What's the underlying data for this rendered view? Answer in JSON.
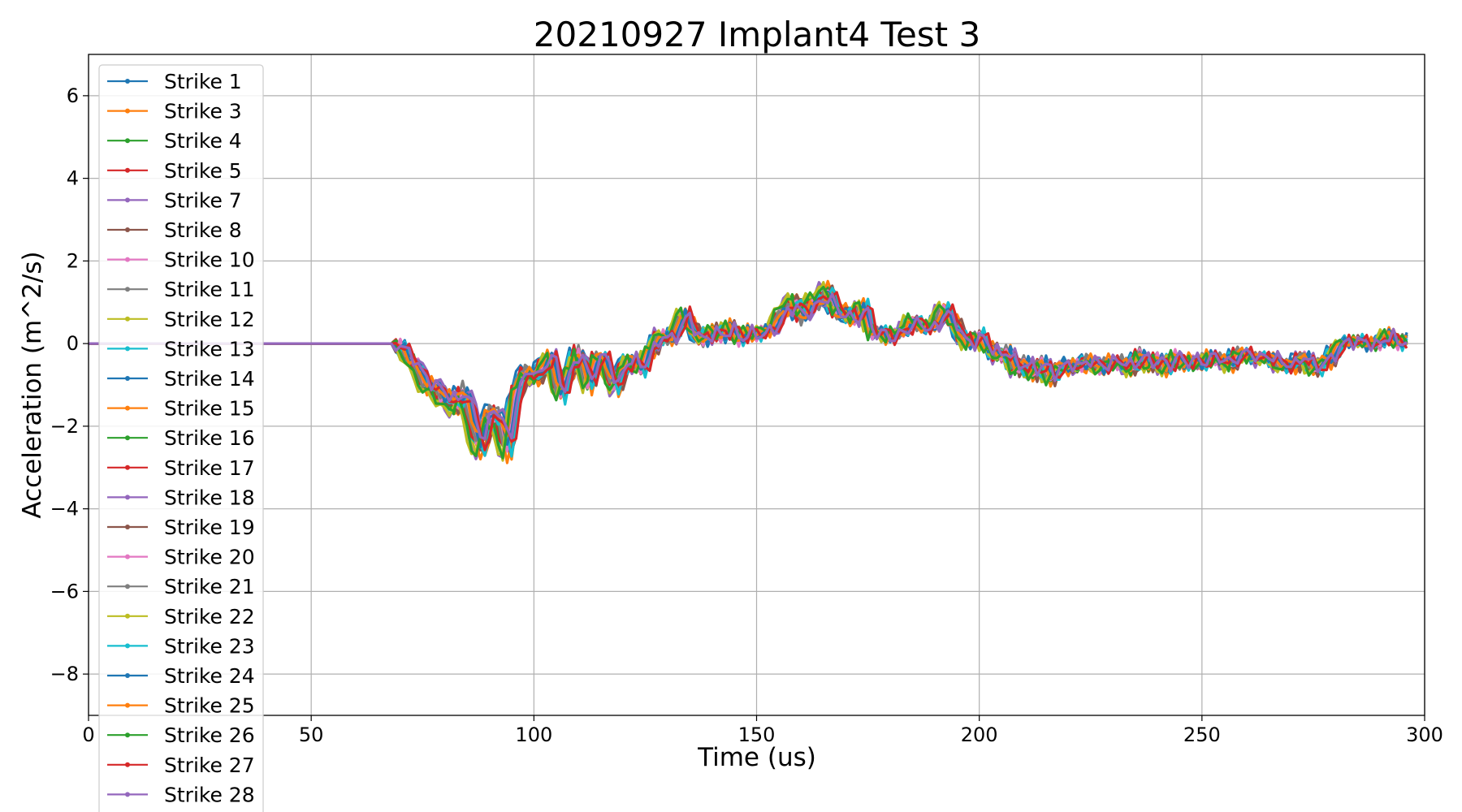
{
  "chart_data": {
    "type": "line",
    "title": "20210927 Implant4 Test 3",
    "xlabel": "Time (us)",
    "ylabel": "Acceleration (m^2/s)",
    "xlim": [
      0,
      300
    ],
    "ylim": [
      -9,
      7
    ],
    "xticks": [
      0,
      50,
      100,
      150,
      200,
      250,
      300
    ],
    "yticks": [
      -8,
      -6,
      -4,
      -2,
      0,
      2,
      4,
      6
    ],
    "xtick_labels": [
      "0",
      "50",
      "100",
      "150",
      "200",
      "250",
      "300"
    ],
    "ytick_labels": [
      "−8",
      "−6",
      "−4",
      "−2",
      "0",
      "2",
      "4",
      "6"
    ],
    "grid": true,
    "legend_position": "upper-left",
    "marker": "dot",
    "x": [
      0,
      10,
      20,
      30,
      40,
      50,
      60,
      68,
      70,
      72,
      74,
      76,
      78,
      80,
      82,
      84,
      86,
      88,
      90,
      92,
      94,
      96,
      98,
      100,
      102,
      104,
      106,
      108,
      110,
      112,
      114,
      116,
      118,
      120,
      122,
      124,
      126,
      128,
      130,
      132,
      134,
      136,
      138,
      140,
      142,
      144,
      146,
      148,
      150,
      152,
      154,
      156,
      158,
      160,
      162,
      164,
      166,
      168,
      170,
      172,
      174,
      176,
      178,
      180,
      182,
      184,
      186,
      188,
      190,
      192,
      194,
      196,
      198,
      200,
      202,
      204,
      206,
      208,
      210,
      212,
      214,
      216,
      218,
      220,
      222,
      224,
      226,
      228,
      230,
      232,
      234,
      236,
      238,
      240,
      242,
      244,
      246,
      248,
      250,
      252,
      254,
      256,
      258,
      260,
      262,
      264,
      266,
      268,
      270,
      272,
      274,
      276,
      278,
      280,
      282,
      284,
      286,
      288,
      290,
      292,
      294,
      296
    ],
    "base_y": [
      0,
      0,
      0,
      0,
      0,
      0,
      0,
      0,
      -0.1,
      -0.3,
      -0.7,
      -1.0,
      -1.1,
      -1.3,
      -1.5,
      -1.2,
      -1.8,
      -2.6,
      -1.6,
      -1.9,
      -2.5,
      -1.2,
      -0.6,
      -0.9,
      -0.5,
      -0.3,
      -1.3,
      -0.6,
      -0.2,
      -1.0,
      -0.4,
      -0.3,
      -1.2,
      -0.5,
      -0.4,
      -0.6,
      -0.2,
      0.2,
      0.1,
      0.3,
      0.8,
      0.2,
      0.1,
      0.3,
      0.2,
      0.4,
      0.1,
      0.3,
      0.2,
      0.3,
      0.4,
      0.8,
      1.0,
      0.7,
      0.9,
      1.1,
      1.2,
      0.8,
      0.7,
      0.6,
      0.9,
      0.2,
      0.3,
      0.1,
      0.3,
      0.4,
      0.6,
      0.3,
      0.5,
      0.8,
      0.6,
      0.1,
      0.0,
      0.2,
      -0.1,
      -0.3,
      -0.2,
      -0.6,
      -0.5,
      -0.7,
      -0.5,
      -0.8,
      -0.6,
      -0.5,
      -0.6,
      -0.4,
      -0.5,
      -0.6,
      -0.4,
      -0.5,
      -0.6,
      -0.3,
      -0.5,
      -0.4,
      -0.6,
      -0.3,
      -0.5,
      -0.4,
      -0.5,
      -0.3,
      -0.4,
      -0.5,
      -0.3,
      -0.2,
      -0.4,
      -0.3,
      -0.4,
      -0.5,
      -0.6,
      -0.3,
      -0.5,
      -0.6,
      -0.4,
      -0.2,
      0.1,
      0.0,
      0.1,
      -0.1,
      0.1,
      0.2,
      0.0,
      0.1
    ],
    "series": [
      {
        "name": "Strike 1",
        "color": "#1f77b4"
      },
      {
        "name": "Strike 3",
        "color": "#ff7f0e"
      },
      {
        "name": "Strike 4",
        "color": "#2ca02c"
      },
      {
        "name": "Strike 5",
        "color": "#d62728"
      },
      {
        "name": "Strike 7",
        "color": "#9467bd"
      },
      {
        "name": "Strike 8",
        "color": "#8c564b"
      },
      {
        "name": "Strike 10",
        "color": "#e377c2"
      },
      {
        "name": "Strike 11",
        "color": "#7f7f7f"
      },
      {
        "name": "Strike 12",
        "color": "#bcbd22"
      },
      {
        "name": "Strike 13",
        "color": "#17becf"
      },
      {
        "name": "Strike 14",
        "color": "#1f77b4"
      },
      {
        "name": "Strike 15",
        "color": "#ff7f0e"
      },
      {
        "name": "Strike 16",
        "color": "#2ca02c"
      },
      {
        "name": "Strike 17",
        "color": "#d62728"
      },
      {
        "name": "Strike 18",
        "color": "#9467bd"
      },
      {
        "name": "Strike 19",
        "color": "#8c564b"
      },
      {
        "name": "Strike 20",
        "color": "#e377c2"
      },
      {
        "name": "Strike 21",
        "color": "#7f7f7f"
      },
      {
        "name": "Strike 22",
        "color": "#bcbd22"
      },
      {
        "name": "Strike 23",
        "color": "#17becf"
      },
      {
        "name": "Strike 24",
        "color": "#1f77b4"
      },
      {
        "name": "Strike 25",
        "color": "#ff7f0e"
      },
      {
        "name": "Strike 26",
        "color": "#2ca02c"
      },
      {
        "name": "Strike 27",
        "color": "#d62728"
      },
      {
        "name": "Strike 28",
        "color": "#9467bd"
      }
    ]
  }
}
